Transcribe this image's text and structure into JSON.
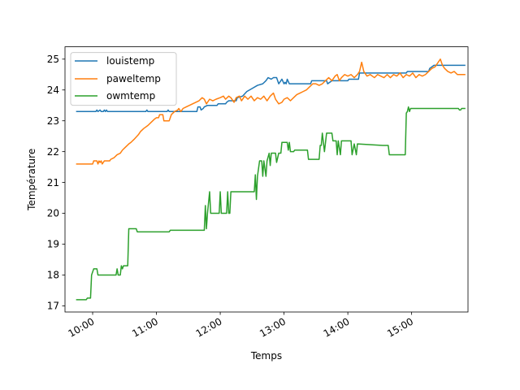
{
  "chart_data": {
    "type": "line",
    "title": "",
    "xlabel": "Temps",
    "ylabel": "Température",
    "x_axis_type": "time",
    "xlim": [
      "09:34",
      "15:53"
    ],
    "ylim": [
      16.8,
      25.4
    ],
    "xticks": [
      "10:00",
      "11:00",
      "12:00",
      "13:00",
      "14:00",
      "15:00"
    ],
    "yticks": [
      17,
      18,
      19,
      20,
      21,
      22,
      23,
      24,
      25
    ],
    "grid": false,
    "legend_location": "top-left",
    "series": [
      {
        "name": "louistemp",
        "color": "#1f77b4",
        "points": [
          [
            "09:45",
            23.3
          ],
          [
            "10:03",
            23.3
          ],
          [
            "10:04",
            23.35
          ],
          [
            "10:05",
            23.3
          ],
          [
            "10:07",
            23.35
          ],
          [
            "10:08",
            23.3
          ],
          [
            "10:10",
            23.3
          ],
          [
            "10:11",
            23.35
          ],
          [
            "10:12",
            23.3
          ],
          [
            "10:13",
            23.35
          ],
          [
            "10:14",
            23.3
          ],
          [
            "10:50",
            23.3
          ],
          [
            "10:51",
            23.35
          ],
          [
            "10:52",
            23.3
          ],
          [
            "11:10",
            23.3
          ],
          [
            "11:11",
            23.35
          ],
          [
            "11:12",
            23.3
          ],
          [
            "11:38",
            23.3
          ],
          [
            "11:39",
            23.45
          ],
          [
            "11:41",
            23.45
          ],
          [
            "11:42",
            23.35
          ],
          [
            "11:44",
            23.4
          ],
          [
            "11:45",
            23.45
          ],
          [
            "11:48",
            23.5
          ],
          [
            "11:57",
            23.5
          ],
          [
            "11:58",
            23.55
          ],
          [
            "12:05",
            23.55
          ],
          [
            "12:06",
            23.6
          ],
          [
            "12:08",
            23.65
          ],
          [
            "12:15",
            23.65
          ],
          [
            "12:16",
            23.75
          ],
          [
            "12:21",
            23.8
          ],
          [
            "12:25",
            23.95
          ],
          [
            "12:30",
            24.05
          ],
          [
            "12:35",
            24.15
          ],
          [
            "12:40",
            24.2
          ],
          [
            "12:43",
            24.3
          ],
          [
            "12:45",
            24.4
          ],
          [
            "12:48",
            24.35
          ],
          [
            "12:50",
            24.4
          ],
          [
            "12:53",
            24.4
          ],
          [
            "12:55",
            24.2
          ],
          [
            "12:58",
            24.35
          ],
          [
            "13:00",
            24.2
          ],
          [
            "13:01",
            24.25
          ],
          [
            "13:02",
            24.2
          ],
          [
            "13:03",
            24.35
          ],
          [
            "13:05",
            24.2
          ],
          [
            "13:25",
            24.2
          ],
          [
            "13:26",
            24.3
          ],
          [
            "13:40",
            24.3
          ],
          [
            "13:41",
            24.2
          ],
          [
            "13:45",
            24.3
          ],
          [
            "14:00",
            24.3
          ],
          [
            "14:01",
            24.35
          ],
          [
            "14:10",
            24.35
          ],
          [
            "14:11",
            24.55
          ],
          [
            "14:55",
            24.55
          ],
          [
            "14:56",
            24.6
          ],
          [
            "15:16",
            24.6
          ],
          [
            "15:17",
            24.7
          ],
          [
            "15:21",
            24.8
          ],
          [
            "15:50",
            24.8
          ]
        ]
      },
      {
        "name": "paweltemp",
        "color": "#ff7f0e",
        "points": [
          [
            "09:45",
            21.6
          ],
          [
            "10:00",
            21.6
          ],
          [
            "10:01",
            21.7
          ],
          [
            "10:04",
            21.7
          ],
          [
            "10:05",
            21.6
          ],
          [
            "10:06",
            21.7
          ],
          [
            "10:07",
            21.65
          ],
          [
            "10:08",
            21.7
          ],
          [
            "10:09",
            21.6
          ],
          [
            "10:11",
            21.7
          ],
          [
            "10:16",
            21.7
          ],
          [
            "10:17",
            21.75
          ],
          [
            "10:20",
            21.8
          ],
          [
            "10:23",
            21.9
          ],
          [
            "10:26",
            21.95
          ],
          [
            "10:28",
            22.05
          ],
          [
            "10:31",
            22.15
          ],
          [
            "10:34",
            22.25
          ],
          [
            "10:36",
            22.3
          ],
          [
            "10:39",
            22.4
          ],
          [
            "10:43",
            22.55
          ],
          [
            "10:45",
            22.65
          ],
          [
            "10:48",
            22.75
          ],
          [
            "10:52",
            22.85
          ],
          [
            "10:55",
            22.95
          ],
          [
            "10:58",
            23.05
          ],
          [
            "11:00",
            23.1
          ],
          [
            "11:02",
            23.1
          ],
          [
            "11:03",
            23.2
          ],
          [
            "11:06",
            23.2
          ],
          [
            "11:07",
            23.0
          ],
          [
            "11:12",
            23.0
          ],
          [
            "11:14",
            23.2
          ],
          [
            "11:17",
            23.3
          ],
          [
            "11:20",
            23.35
          ],
          [
            "11:21",
            23.4
          ],
          [
            "11:23",
            23.3
          ],
          [
            "11:25",
            23.4
          ],
          [
            "11:28",
            23.45
          ],
          [
            "11:31",
            23.5
          ],
          [
            "11:34",
            23.55
          ],
          [
            "11:37",
            23.6
          ],
          [
            "11:40",
            23.65
          ],
          [
            "11:43",
            23.75
          ],
          [
            "11:45",
            23.7
          ],
          [
            "11:47",
            23.55
          ],
          [
            "11:50",
            23.7
          ],
          [
            "11:53",
            23.65
          ],
          [
            "11:56",
            23.7
          ],
          [
            "12:00",
            23.75
          ],
          [
            "12:03",
            23.8
          ],
          [
            "12:05",
            23.7
          ],
          [
            "12:08",
            23.8
          ],
          [
            "12:10",
            23.75
          ],
          [
            "12:13",
            23.6
          ],
          [
            "12:15",
            23.75
          ],
          [
            "12:18",
            23.8
          ],
          [
            "12:20",
            23.65
          ],
          [
            "12:23",
            23.8
          ],
          [
            "12:26",
            23.7
          ],
          [
            "12:29",
            23.8
          ],
          [
            "12:32",
            23.65
          ],
          [
            "12:35",
            23.75
          ],
          [
            "12:38",
            23.7
          ],
          [
            "12:41",
            23.8
          ],
          [
            "12:44",
            23.65
          ],
          [
            "12:47",
            23.8
          ],
          [
            "12:50",
            23.9
          ],
          [
            "12:52",
            23.7
          ],
          [
            "12:55",
            23.55
          ],
          [
            "12:58",
            23.6
          ],
          [
            "13:00",
            23.7
          ],
          [
            "13:03",
            23.75
          ],
          [
            "13:06",
            23.65
          ],
          [
            "13:09",
            23.75
          ],
          [
            "13:12",
            23.85
          ],
          [
            "13:15",
            23.9
          ],
          [
            "13:18",
            23.95
          ],
          [
            "13:21",
            24.0
          ],
          [
            "13:24",
            24.1
          ],
          [
            "13:27",
            24.2
          ],
          [
            "13:30",
            24.2
          ],
          [
            "13:33",
            24.15
          ],
          [
            "13:36",
            24.2
          ],
          [
            "13:39",
            24.3
          ],
          [
            "13:42",
            24.4
          ],
          [
            "13:45",
            24.3
          ],
          [
            "13:48",
            24.45
          ],
          [
            "13:50",
            24.5
          ],
          [
            "13:52",
            24.3
          ],
          [
            "13:54",
            24.4
          ],
          [
            "13:57",
            24.5
          ],
          [
            "14:00",
            24.45
          ],
          [
            "14:03",
            24.5
          ],
          [
            "14:06",
            24.4
          ],
          [
            "14:09",
            24.5
          ],
          [
            "14:11",
            24.6
          ],
          [
            "14:13",
            24.9
          ],
          [
            "14:15",
            24.6
          ],
          [
            "14:18",
            24.45
          ],
          [
            "14:21",
            24.5
          ],
          [
            "14:25",
            24.4
          ],
          [
            "14:28",
            24.5
          ],
          [
            "14:31",
            24.45
          ],
          [
            "14:34",
            24.4
          ],
          [
            "14:37",
            24.5
          ],
          [
            "14:40",
            24.4
          ],
          [
            "14:43",
            24.5
          ],
          [
            "14:46",
            24.45
          ],
          [
            "14:49",
            24.55
          ],
          [
            "14:52",
            24.4
          ],
          [
            "14:55",
            24.5
          ],
          [
            "14:58",
            24.45
          ],
          [
            "15:01",
            24.55
          ],
          [
            "15:04",
            24.4
          ],
          [
            "15:07",
            24.5
          ],
          [
            "15:10",
            24.45
          ],
          [
            "15:13",
            24.5
          ],
          [
            "15:16",
            24.6
          ],
          [
            "15:19",
            24.7
          ],
          [
            "15:22",
            24.75
          ],
          [
            "15:25",
            24.9
          ],
          [
            "15:27",
            25.0
          ],
          [
            "15:29",
            24.8
          ],
          [
            "15:31",
            24.7
          ],
          [
            "15:34",
            24.6
          ],
          [
            "15:37",
            24.55
          ],
          [
            "15:40",
            24.6
          ],
          [
            "15:43",
            24.5
          ],
          [
            "15:50",
            24.5
          ]
        ]
      },
      {
        "name": "owmtemp",
        "color": "#2ca02c",
        "points": [
          [
            "09:45",
            17.2
          ],
          [
            "09:54",
            17.2
          ],
          [
            "09:55",
            17.25
          ],
          [
            "09:58",
            17.25
          ],
          [
            "09:59",
            18.0
          ],
          [
            "10:01",
            18.2
          ],
          [
            "10:04",
            18.2
          ],
          [
            "10:05",
            18.0
          ],
          [
            "10:22",
            18.0
          ],
          [
            "10:23",
            18.2
          ],
          [
            "10:24",
            18.0
          ],
          [
            "10:26",
            18.0
          ],
          [
            "10:27",
            18.3
          ],
          [
            "10:28",
            18.2
          ],
          [
            "10:29",
            18.3
          ],
          [
            "10:33",
            18.3
          ],
          [
            "10:34",
            19.5
          ],
          [
            "10:41",
            19.5
          ],
          [
            "10:42",
            19.4
          ],
          [
            "11:12",
            19.4
          ],
          [
            "11:13",
            19.45
          ],
          [
            "11:45",
            19.45
          ],
          [
            "11:46",
            20.25
          ],
          [
            "11:47",
            19.5
          ],
          [
            "11:48",
            20.0
          ],
          [
            "11:50",
            20.7
          ],
          [
            "11:51",
            20.0
          ],
          [
            "11:59",
            20.0
          ],
          [
            "12:00",
            20.7
          ],
          [
            "12:01",
            20.0
          ],
          [
            "12:06",
            20.0
          ],
          [
            "12:07",
            20.7
          ],
          [
            "12:08",
            20.0
          ],
          [
            "12:09",
            20.0
          ],
          [
            "12:10",
            20.7
          ],
          [
            "12:32",
            20.7
          ],
          [
            "12:33",
            21.25
          ],
          [
            "12:34",
            20.45
          ],
          [
            "12:35",
            21.2
          ],
          [
            "12:37",
            21.7
          ],
          [
            "12:39",
            21.7
          ],
          [
            "12:40",
            21.2
          ],
          [
            "12:41",
            21.7
          ],
          [
            "12:43",
            21.2
          ],
          [
            "12:44",
            21.7
          ],
          [
            "12:46",
            21.95
          ],
          [
            "12:47",
            21.55
          ],
          [
            "12:48",
            21.95
          ],
          [
            "12:52",
            21.95
          ],
          [
            "12:53",
            21.65
          ],
          [
            "12:55",
            21.95
          ],
          [
            "12:57",
            21.95
          ],
          [
            "12:58",
            22.3
          ],
          [
            "13:03",
            22.3
          ],
          [
            "13:04",
            22.05
          ],
          [
            "13:05",
            22.3
          ],
          [
            "13:06",
            22.0
          ],
          [
            "13:09",
            22.0
          ],
          [
            "13:10",
            22.05
          ],
          [
            "13:22",
            22.05
          ],
          [
            "13:23",
            21.75
          ],
          [
            "13:33",
            21.75
          ],
          [
            "13:34",
            22.2
          ],
          [
            "13:35",
            22.2
          ],
          [
            "13:36",
            22.6
          ],
          [
            "13:38",
            22.0
          ],
          [
            "13:40",
            22.6
          ],
          [
            "13:45",
            22.6
          ],
          [
            "13:46",
            22.35
          ],
          [
            "13:49",
            22.35
          ],
          [
            "13:50",
            21.9
          ],
          [
            "13:51",
            22.35
          ],
          [
            "13:53",
            21.9
          ],
          [
            "13:54",
            22.35
          ],
          [
            "14:03",
            22.35
          ],
          [
            "14:04",
            21.9
          ],
          [
            "14:06",
            22.25
          ],
          [
            "14:08",
            21.9
          ],
          [
            "14:09",
            22.25
          ],
          [
            "14:33",
            22.2
          ],
          [
            "14:38",
            22.2
          ],
          [
            "14:39",
            21.9
          ],
          [
            "14:54",
            21.9
          ],
          [
            "14:55",
            23.25
          ],
          [
            "14:56",
            23.3
          ],
          [
            "14:57",
            23.45
          ],
          [
            "14:58",
            23.3
          ],
          [
            "14:59",
            23.4
          ],
          [
            "15:44",
            23.4
          ],
          [
            "15:45",
            23.35
          ],
          [
            "15:46",
            23.35
          ],
          [
            "15:47",
            23.4
          ],
          [
            "15:50",
            23.4
          ]
        ]
      }
    ]
  }
}
